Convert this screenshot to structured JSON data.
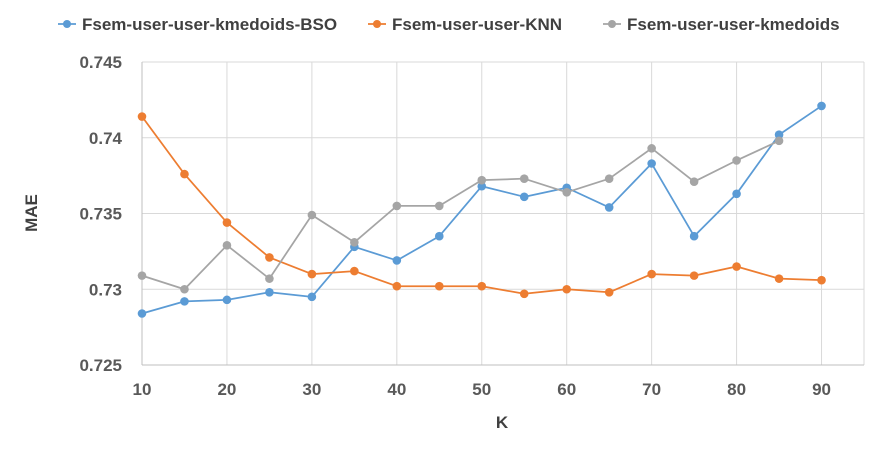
{
  "chart_data": {
    "type": "line",
    "title": "",
    "xlabel": "K",
    "ylabel": "MAE",
    "x": [
      10,
      15,
      20,
      25,
      30,
      35,
      40,
      45,
      50,
      55,
      60,
      65,
      70,
      75,
      80,
      85,
      90
    ],
    "x_ticks": [
      "10",
      "20",
      "30",
      "40",
      "50",
      "60",
      "70",
      "80",
      "90"
    ],
    "y_ticks": [
      "0.725",
      "0.73",
      "0.735",
      "0.74",
      "0.745"
    ],
    "xlim": [
      10,
      95
    ],
    "ylim": [
      0.725,
      0.745
    ],
    "grid": true,
    "legend_position": "top",
    "series": [
      {
        "name": "Fsem-user-user-kmedoids-BSO",
        "color": "#5b9bd5",
        "x": [
          10,
          15,
          20,
          25,
          30,
          35,
          40,
          45,
          50,
          55,
          60,
          65,
          70,
          75,
          80,
          85,
          90
        ],
        "values": [
          0.7284,
          0.7292,
          0.7293,
          0.7298,
          0.7295,
          0.7328,
          0.7319,
          0.7335,
          0.7368,
          0.7361,
          0.7367,
          0.7354,
          0.7383,
          0.7335,
          0.7363,
          0.7402,
          0.7421
        ]
      },
      {
        "name": "Fsem-user-user-KNN",
        "color": "#ed7d31",
        "x": [
          10,
          15,
          20,
          25,
          30,
          35,
          40,
          45,
          50,
          55,
          60,
          65,
          70,
          75,
          80,
          85,
          90
        ],
        "values": [
          0.7414,
          0.7376,
          0.7344,
          0.7321,
          0.731,
          0.7312,
          0.7302,
          0.7302,
          0.7302,
          0.7297,
          0.73,
          0.7298,
          0.731,
          0.7309,
          0.7315,
          0.7307,
          0.7306
        ]
      },
      {
        "name": "Fsem-user-user-kmedoids",
        "color": "#a5a5a5",
        "x": [
          10,
          15,
          20,
          25,
          30,
          35,
          40,
          45,
          50,
          55,
          60,
          65,
          70,
          75,
          80,
          85
        ],
        "values": [
          0.7309,
          0.73,
          0.7329,
          0.7307,
          0.7349,
          0.7331,
          0.7355,
          0.7355,
          0.7372,
          0.7373,
          0.7364,
          0.7373,
          0.7393,
          0.7371,
          0.7385,
          0.7398
        ]
      }
    ]
  }
}
